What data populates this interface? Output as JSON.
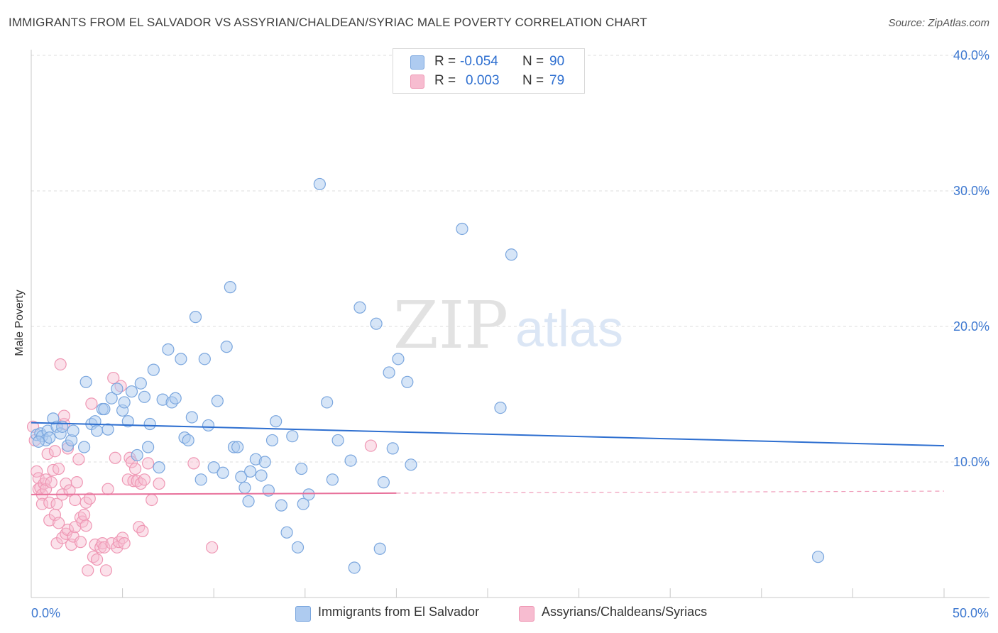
{
  "title": "IMMIGRANTS FROM EL SALVADOR VS ASSYRIAN/CHALDEAN/SYRIAC MALE POVERTY CORRELATION CHART",
  "source": "Source: ZipAtlas.com",
  "watermark": {
    "zip": "ZIP",
    "atlas": "atlas"
  },
  "legend": {
    "rows": [
      {
        "r_label": "R =",
        "r_value": "-0.054",
        "n_label": "N =",
        "n_value": "90"
      },
      {
        "r_label": "R =",
        "r_value": "0.003",
        "n_label": "N =",
        "n_value": "79"
      }
    ]
  },
  "colors": {
    "blue_fill": "#aecbf0",
    "blue_stroke": "#7aa6de",
    "blue_line": "#2e6fd0",
    "pink_fill": "#f7bcd0",
    "pink_stroke": "#ef97b4",
    "pink_line": "#e8719b",
    "axis_text": "#3d78d0",
    "grid": "#dddddd"
  },
  "chart_data": {
    "type": "scatter",
    "title": "IMMIGRANTS FROM EL SALVADOR VS ASSYRIAN/CHALDEAN/SYRIAC MALE POVERTY CORRELATION CHART",
    "xlabel": "",
    "ylabel": "Male Poverty",
    "xlim": [
      0,
      50
    ],
    "ylim": [
      0,
      40
    ],
    "x_tick_labels": [
      {
        "value": 0,
        "label": "0.0%"
      },
      {
        "value": 50,
        "label": "50.0%"
      }
    ],
    "y_tick_labels": [
      {
        "value": 10,
        "label": "10.0%"
      },
      {
        "value": 20,
        "label": "20.0%"
      },
      {
        "value": 30,
        "label": "30.0%"
      },
      {
        "value": 40,
        "label": "40.0%"
      }
    ],
    "series": [
      {
        "name": "Immigrants from El Salvador",
        "r": -0.054,
        "n": 90,
        "trend": {
          "x0": 0,
          "y0": 12.9,
          "x1": 50,
          "y1": 11.2
        },
        "points": [
          [
            0.3,
            12.0
          ],
          [
            0.5,
            12.1
          ],
          [
            0.6,
            11.9
          ],
          [
            0.8,
            11.6
          ],
          [
            0.9,
            12.3
          ],
          [
            1.0,
            11.8
          ],
          [
            1.2,
            13.2
          ],
          [
            1.4,
            12.6
          ],
          [
            1.6,
            12.1
          ],
          [
            1.7,
            12.6
          ],
          [
            2.0,
            11.2
          ],
          [
            2.2,
            11.6
          ],
          [
            2.3,
            12.3
          ],
          [
            2.9,
            11.1
          ],
          [
            3.0,
            15.9
          ],
          [
            3.3,
            12.8
          ],
          [
            3.5,
            13.0
          ],
          [
            3.6,
            12.3
          ],
          [
            3.9,
            13.9
          ],
          [
            4.0,
            13.9
          ],
          [
            4.2,
            12.4
          ],
          [
            4.4,
            14.7
          ],
          [
            4.7,
            15.4
          ],
          [
            5.0,
            13.8
          ],
          [
            5.1,
            14.4
          ],
          [
            5.3,
            13.0
          ],
          [
            5.5,
            15.2
          ],
          [
            5.8,
            10.5
          ],
          [
            6.0,
            15.8
          ],
          [
            6.2,
            14.8
          ],
          [
            6.4,
            11.1
          ],
          [
            6.5,
            12.8
          ],
          [
            6.7,
            16.8
          ],
          [
            7.0,
            9.6
          ],
          [
            7.2,
            14.6
          ],
          [
            7.5,
            18.3
          ],
          [
            7.7,
            14.4
          ],
          [
            7.9,
            14.7
          ],
          [
            8.2,
            17.6
          ],
          [
            8.4,
            11.8
          ],
          [
            8.6,
            11.6
          ],
          [
            8.8,
            13.3
          ],
          [
            9.0,
            20.7
          ],
          [
            9.3,
            8.7
          ],
          [
            9.5,
            17.6
          ],
          [
            9.7,
            12.7
          ],
          [
            10.0,
            9.6
          ],
          [
            10.2,
            14.5
          ],
          [
            10.5,
            9.2
          ],
          [
            10.7,
            18.5
          ],
          [
            10.9,
            22.9
          ],
          [
            11.1,
            11.1
          ],
          [
            11.3,
            11.1
          ],
          [
            11.5,
            8.9
          ],
          [
            11.7,
            8.1
          ],
          [
            11.9,
            7.1
          ],
          [
            12.0,
            9.3
          ],
          [
            12.3,
            10.2
          ],
          [
            12.6,
            9.0
          ],
          [
            12.8,
            10.0
          ],
          [
            13.0,
            7.9
          ],
          [
            13.2,
            11.6
          ],
          [
            13.4,
            13.0
          ],
          [
            13.7,
            6.8
          ],
          [
            14.0,
            4.8
          ],
          [
            14.3,
            11.9
          ],
          [
            14.6,
            3.7
          ],
          [
            14.8,
            9.5
          ],
          [
            14.9,
            6.9
          ],
          [
            15.2,
            7.6
          ],
          [
            15.8,
            30.5
          ],
          [
            16.2,
            14.4
          ],
          [
            16.5,
            8.7
          ],
          [
            16.8,
            11.6
          ],
          [
            17.5,
            10.1
          ],
          [
            17.7,
            2.2
          ],
          [
            18.0,
            21.4
          ],
          [
            18.9,
            20.2
          ],
          [
            19.1,
            3.6
          ],
          [
            19.3,
            8.5
          ],
          [
            19.6,
            16.6
          ],
          [
            19.8,
            11.0
          ],
          [
            20.1,
            17.6
          ],
          [
            20.6,
            15.9
          ],
          [
            20.8,
            9.8
          ],
          [
            23.6,
            27.2
          ],
          [
            25.7,
            14.0
          ],
          [
            26.3,
            25.3
          ],
          [
            43.1,
            3.0
          ],
          [
            0.4,
            11.5
          ]
        ]
      },
      {
        "name": "Assyrians/Chaldeans/Syriacs",
        "r": 0.003,
        "n": 79,
        "trend": {
          "x0": 0,
          "y0": 7.6,
          "x1": 20,
          "y1": 7.7,
          "dashed_to": 50
        },
        "points": [
          [
            0.1,
            12.6
          ],
          [
            0.2,
            11.6
          ],
          [
            0.3,
            9.3
          ],
          [
            0.4,
            8.8
          ],
          [
            0.4,
            8.0
          ],
          [
            0.5,
            8.1
          ],
          [
            0.6,
            7.6
          ],
          [
            0.6,
            6.9
          ],
          [
            0.7,
            8.4
          ],
          [
            0.8,
            8.0
          ],
          [
            0.8,
            8.7
          ],
          [
            0.9,
            10.6
          ],
          [
            1.0,
            7.0
          ],
          [
            1.0,
            5.7
          ],
          [
            1.1,
            8.5
          ],
          [
            1.2,
            9.4
          ],
          [
            1.3,
            10.8
          ],
          [
            1.3,
            6.1
          ],
          [
            1.4,
            6.9
          ],
          [
            1.4,
            4.0
          ],
          [
            1.5,
            5.5
          ],
          [
            1.5,
            9.5
          ],
          [
            1.6,
            17.2
          ],
          [
            1.7,
            7.6
          ],
          [
            1.7,
            4.4
          ],
          [
            1.8,
            12.8
          ],
          [
            1.8,
            13.4
          ],
          [
            1.9,
            4.7
          ],
          [
            1.9,
            8.4
          ],
          [
            2.0,
            5.0
          ],
          [
            2.0,
            11.0
          ],
          [
            2.1,
            7.9
          ],
          [
            2.2,
            3.9
          ],
          [
            2.3,
            4.5
          ],
          [
            2.4,
            5.2
          ],
          [
            2.4,
            7.2
          ],
          [
            2.5,
            8.5
          ],
          [
            2.6,
            10.2
          ],
          [
            2.7,
            4.1
          ],
          [
            2.7,
            5.9
          ],
          [
            2.8,
            5.6
          ],
          [
            2.9,
            6.1
          ],
          [
            3.0,
            5.3
          ],
          [
            3.0,
            7.0
          ],
          [
            3.1,
            2.0
          ],
          [
            3.2,
            7.3
          ],
          [
            3.3,
            14.3
          ],
          [
            3.4,
            3.0
          ],
          [
            3.5,
            3.9
          ],
          [
            3.6,
            2.8
          ],
          [
            3.8,
            3.7
          ],
          [
            3.9,
            4.0
          ],
          [
            4.0,
            3.7
          ],
          [
            4.1,
            2.0
          ],
          [
            4.2,
            8.0
          ],
          [
            4.4,
            4.0
          ],
          [
            4.5,
            16.2
          ],
          [
            4.6,
            10.3
          ],
          [
            4.7,
            3.7
          ],
          [
            4.8,
            4.1
          ],
          [
            4.9,
            15.6
          ],
          [
            5.0,
            4.4
          ],
          [
            5.1,
            4.0
          ],
          [
            5.3,
            8.7
          ],
          [
            5.4,
            10.3
          ],
          [
            5.5,
            10.0
          ],
          [
            5.6,
            8.6
          ],
          [
            5.7,
            9.5
          ],
          [
            5.8,
            8.6
          ],
          [
            5.9,
            5.2
          ],
          [
            6.0,
            8.4
          ],
          [
            6.1,
            4.9
          ],
          [
            6.2,
            8.7
          ],
          [
            6.4,
            9.9
          ],
          [
            6.6,
            7.2
          ],
          [
            7.0,
            8.4
          ],
          [
            8.9,
            9.9
          ],
          [
            9.9,
            3.7
          ],
          [
            18.6,
            11.2
          ]
        ]
      }
    ]
  }
}
